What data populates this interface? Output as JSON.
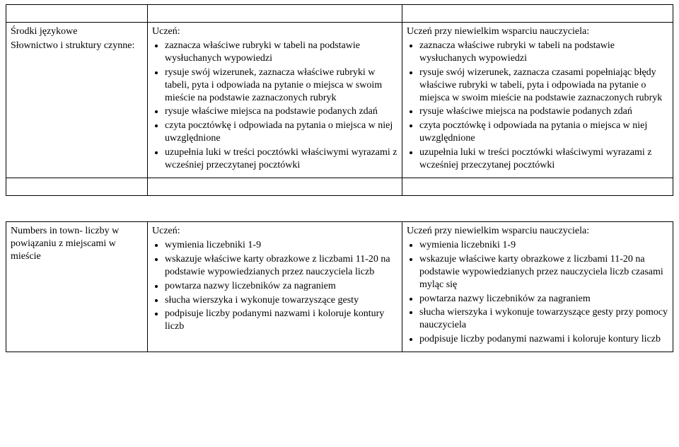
{
  "table1": {
    "left": {
      "line1": "Środki językowe",
      "line2": "Słownictwo i struktury czynne:"
    },
    "mid": {
      "lead": "Uczeń:",
      "items": [
        "zaznacza właściwe rubryki w tabeli na podstawie wysłuchanych wypowiedzi",
        "rysuje swój wizerunek, zaznacza właściwe rubryki w tabeli, pyta i odpowiada na pytanie o miejsca w swoim mieście na podstawie zaznaczonych rubryk",
        "rysuje właściwe miejsca na podstawie podanych zdań",
        "czyta pocztówkę i odpowiada na pytania o miejsca w niej uwzględnione",
        "uzupełnia luki w treści pocztówki właściwymi wyrazami z wcześniej przeczytanej pocztówki"
      ]
    },
    "right": {
      "lead": "Uczeń przy niewielkim wsparciu nauczyciela:",
      "items": [
        "zaznacza właściwe rubryki w tabeli na podstawie wysłuchanych wypowiedzi",
        "rysuje swój wizerunek, zaznacza czasami popełniając błędy właściwe rubryki w tabeli, pyta i odpowiada na pytanie o miejsca w swoim mieście na podstawie zaznaczonych rubryk",
        "rysuje właściwe miejsca na podstawie podanych zdań",
        "czyta pocztówkę i odpowiada na pytania o miejsca w niej uwzględnione",
        "uzupełnia luki w treści pocztówki właściwymi wyrazami z wcześniej przeczytanej pocztówki"
      ]
    }
  },
  "table2": {
    "left": {
      "line1": "Numbers in town- liczby w powiązaniu z miejscami w mieście"
    },
    "mid": {
      "lead": "Uczeń:",
      "items": [
        "wymienia liczebniki 1-9",
        "wskazuje właściwe karty obrazkowe z liczbami 11-20 na podstawie wypowiedzianych przez nauczyciela liczb",
        "powtarza nazwy liczebników za nagraniem",
        "słucha wierszyka i wykonuje towarzyszące gesty",
        "podpisuje liczby podanymi nazwami i koloruje kontury liczb"
      ]
    },
    "right": {
      "lead": "Uczeń przy niewielkim wsparciu nauczyciela:",
      "items": [
        "wymienia liczebniki 1-9",
        "wskazuje właściwe karty obrazkowe z liczbami 11-20 na podstawie wypowiedzianych przez nauczyciela liczb czasami myląc się",
        "powtarza nazwy liczebników za nagraniem",
        "słucha wierszyka i wykonuje towarzyszące gesty przy pomocy nauczyciela",
        "podpisuje liczby podanymi nazwami i koloruje kontury liczb"
      ]
    }
  }
}
